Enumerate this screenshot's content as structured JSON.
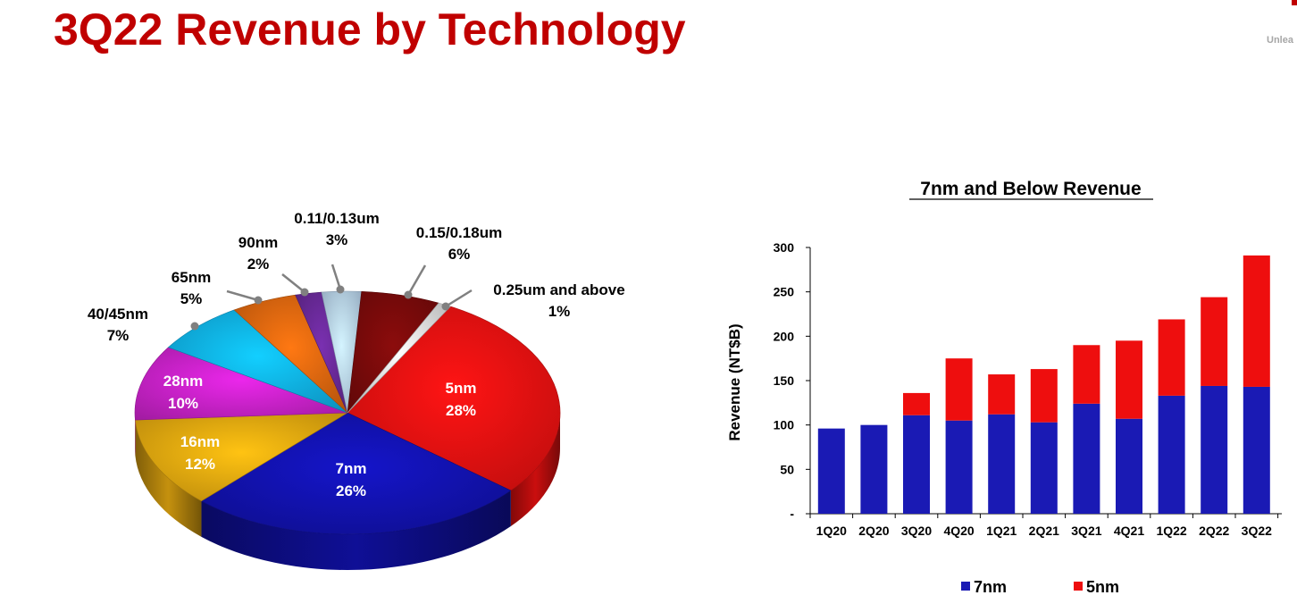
{
  "page": {
    "title": "3Q22 Revenue by Technology",
    "brand_tagline": "Unlea"
  },
  "colors": {
    "title": "#c00000",
    "nm7": "#1a1ab4",
    "nm5": "#ee0e0e"
  },
  "chart_data": [
    {
      "type": "pie",
      "title": "",
      "slices": [
        {
          "label": "5nm",
          "value": 28,
          "value_label": "28%",
          "color": "#ee1111"
        },
        {
          "label": "7nm",
          "value": 26,
          "value_label": "26%",
          "color": "#1212b0"
        },
        {
          "label": "16nm",
          "value": 12,
          "value_label": "12%",
          "color": "#e8aa10"
        },
        {
          "label": "28nm",
          "value": 10,
          "value_label": "10%",
          "color": "#cc22cc"
        },
        {
          "label": "40/45nm",
          "value": 7,
          "value_label": "7%",
          "color": "#10b4ee"
        },
        {
          "label": "65nm",
          "value": 5,
          "value_label": "5%",
          "color": "#e06810"
        },
        {
          "label": "90nm",
          "value": 2,
          "value_label": "2%",
          "color": "#6a2a9a"
        },
        {
          "label": "0.11/0.13um",
          "value": 3,
          "value_label": "3%",
          "color": "#b8d4f0"
        },
        {
          "label": "0.15/0.18um",
          "value": 6,
          "value_label": "6%",
          "color": "#7a0a0a"
        },
        {
          "label": "0.25um and above",
          "value": 1,
          "value_label": "1%",
          "color": "#e0e0e0"
        }
      ]
    },
    {
      "type": "bar",
      "stacked": true,
      "title": "7nm and Below Revenue",
      "xlabel": "",
      "ylabel": "Revenue (NT$B)",
      "ylim": [
        0,
        300
      ],
      "yticks": [
        0,
        50,
        100,
        150,
        200,
        250,
        300
      ],
      "ytick_labels": [
        "-",
        "50",
        "100",
        "150",
        "200",
        "250",
        "300"
      ],
      "categories": [
        "1Q20",
        "2Q20",
        "3Q20",
        "4Q20",
        "1Q21",
        "2Q21",
        "3Q21",
        "4Q21",
        "1Q22",
        "2Q22",
        "3Q22"
      ],
      "series": [
        {
          "name": "7nm",
          "color": "#1a1ab4",
          "values": [
            96,
            100,
            111,
            105,
            112,
            103,
            124,
            107,
            133,
            144,
            143
          ]
        },
        {
          "name": "5nm",
          "color": "#ee0e0e",
          "values": [
            0,
            0,
            25,
            70,
            45,
            60,
            66,
            88,
            86,
            100,
            148
          ]
        }
      ],
      "legend_position": "bottom",
      "grid": false
    }
  ]
}
